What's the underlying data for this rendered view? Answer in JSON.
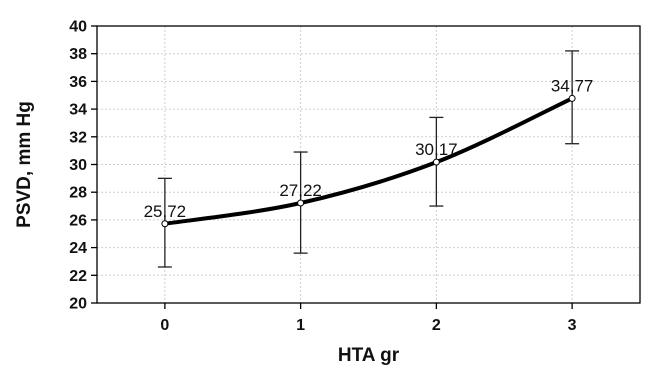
{
  "chart_data": {
    "type": "line",
    "title": "",
    "xlabel": "HTA gr",
    "ylabel": "PSVD, mm Hg",
    "xlim": [
      -0.5,
      3.5
    ],
    "ylim": [
      20,
      40
    ],
    "x": [
      0,
      1,
      2,
      3
    ],
    "x_ticks": [
      "0",
      "1",
      "2",
      "3"
    ],
    "y_ticks": [
      "20",
      "22",
      "24",
      "26",
      "28",
      "30",
      "32",
      "34",
      "36",
      "38",
      "40"
    ],
    "grid": true,
    "series": [
      {
        "values": [
          25.72,
          27.22,
          30.17,
          34.77
        ],
        "labels": [
          "25,72",
          "27,22",
          "30,17",
          "34,77"
        ],
        "error_low": [
          22.6,
          23.6,
          27.0,
          31.5
        ],
        "error_high": [
          29.0,
          30.9,
          33.4,
          38.2
        ]
      }
    ]
  }
}
